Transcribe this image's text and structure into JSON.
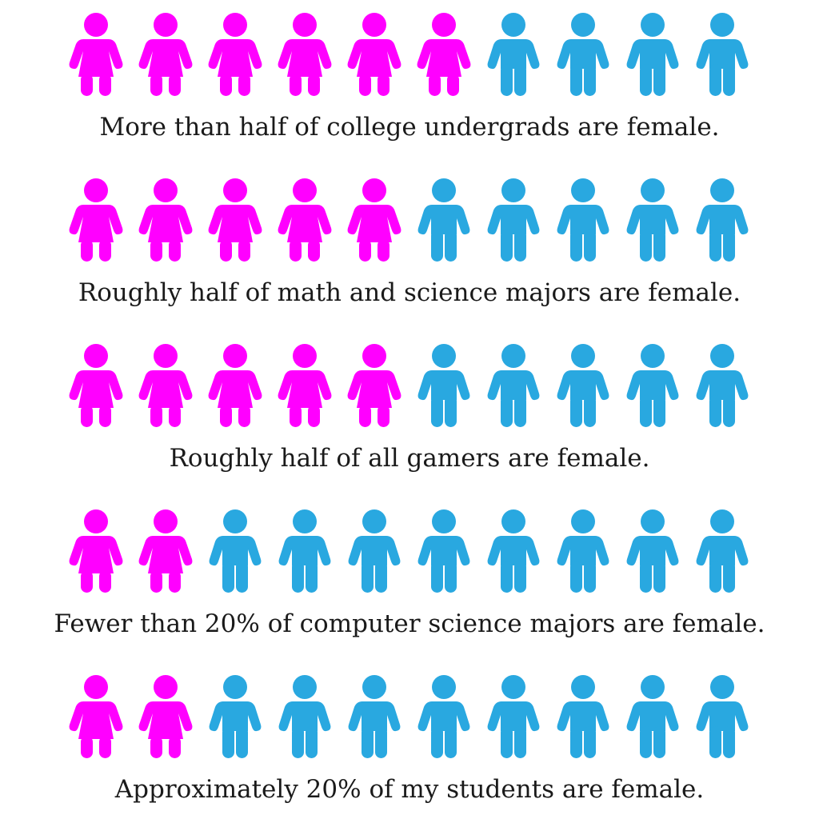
{
  "chart_data": {
    "type": "pictograph",
    "icons_per_row": 10,
    "colors": {
      "female": "#ff00ff",
      "male": "#29a8e0"
    },
    "rows": [
      {
        "female": 6,
        "male": 4,
        "caption": "More than half of college undergrads are female."
      },
      {
        "female": 5,
        "male": 5,
        "caption": "Roughly half of math and science majors are female."
      },
      {
        "female": 5,
        "male": 5,
        "caption": "Roughly half of all gamers are female."
      },
      {
        "female": 2,
        "male": 8,
        "caption": "Fewer than 20% of computer science majors are female."
      },
      {
        "female": 2,
        "male": 8,
        "caption": "Approximately 20% of my students are female."
      }
    ]
  }
}
